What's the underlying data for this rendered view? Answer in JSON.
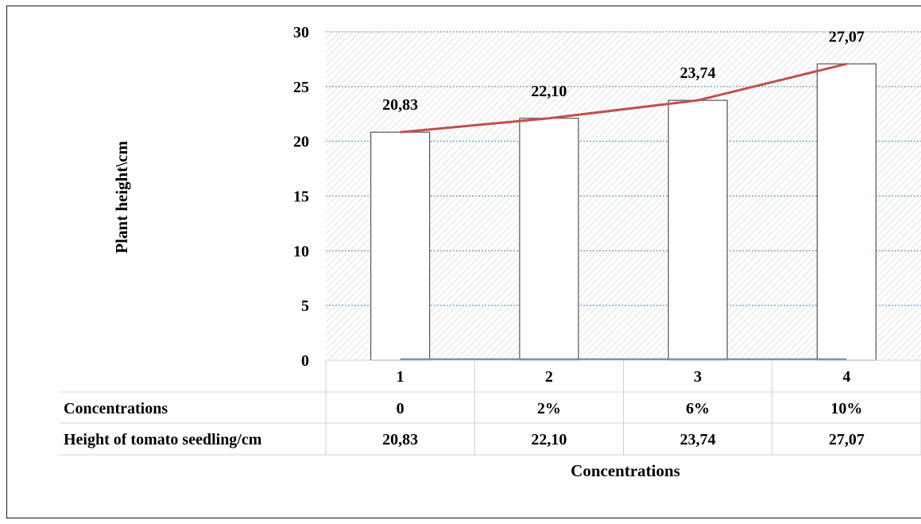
{
  "chart_data": {
    "type": "bar",
    "categories": [
      "1",
      "2",
      "3",
      "4"
    ],
    "values": [
      20.83,
      22.1,
      23.74,
      27.07
    ],
    "data_labels": [
      "20,83",
      "22,10",
      "23,74",
      "27,07"
    ],
    "trend_values": [
      20.83,
      22.1,
      23.74,
      27.07
    ],
    "baseline_values": [
      0,
      0,
      0,
      0
    ],
    "ylabel": "Plant height\\cm",
    "xlabel": "Concentrations",
    "ylim": [
      0,
      30
    ],
    "yticks": [
      "0",
      "5",
      "10",
      "15",
      "20",
      "25",
      "30"
    ],
    "grid": true,
    "data_table": {
      "rows": [
        {
          "label": "Concentrations",
          "cells": [
            "0",
            "2%",
            "6%",
            "10%"
          ]
        },
        {
          "label": "Height of tomato seedling/cm",
          "cells": [
            "20,83",
            "22,10",
            "23,74",
            "27,07"
          ]
        }
      ]
    },
    "colors": {
      "bar_fill": "#ffffff",
      "bar_stroke": "#555555",
      "trend_line": "#c0504d",
      "baseline_line": "#4f81bd",
      "gridline": "#4a86c8",
      "hatch": "#c8c8c8"
    }
  }
}
